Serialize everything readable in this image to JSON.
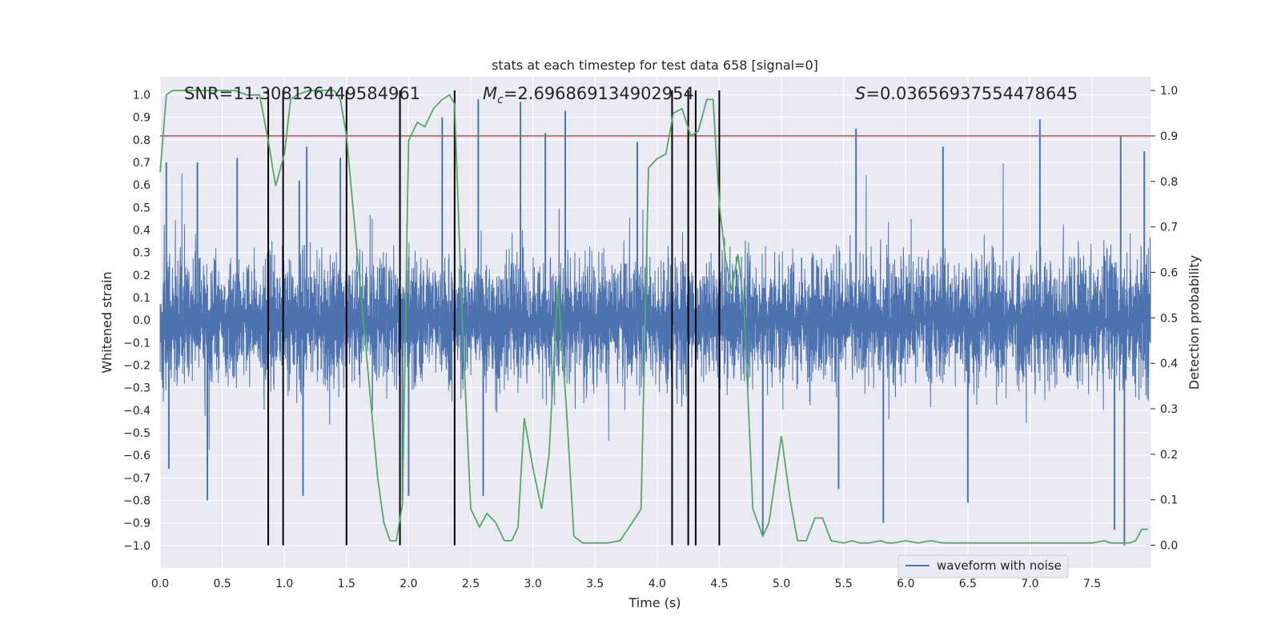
{
  "chart_data": {
    "type": "line",
    "title": "stats at each timestep for test data 658 [signal=0]",
    "xlabel": "Time (s)",
    "ylabel": "Whitened strain",
    "ylabel_right": "Detection probability",
    "xlim": [
      0.0,
      7.97
    ],
    "ylim": [
      -1.1,
      1.08
    ],
    "ylim_right": [
      -0.05,
      1.03
    ],
    "x_ticks": [
      "0.0",
      "0.5",
      "1.0",
      "1.5",
      "2.0",
      "2.5",
      "3.0",
      "3.5",
      "4.0",
      "4.5",
      "5.0",
      "5.5",
      "6.0",
      "6.5",
      "7.0",
      "7.5"
    ],
    "y_ticks": [
      "1.0",
      "0.9",
      "0.8",
      "0.7",
      "0.6",
      "0.5",
      "0.4",
      "0.3",
      "0.2",
      "0.1",
      "0.0",
      "−0.1",
      "−0.2",
      "−0.3",
      "−0.4",
      "−0.5",
      "−0.6",
      "−0.7",
      "−0.8",
      "−0.9",
      "−1.0"
    ],
    "y_right_ticks": [
      "1.0",
      "0.9",
      "0.8",
      "0.7",
      "0.6",
      "0.5",
      "0.4",
      "0.3",
      "0.2",
      "0.1",
      "0.0"
    ],
    "annotations": {
      "snr": "SNR=11.308126449584961",
      "mc_symbol": "M",
      "mc_sub": "c",
      "mc_value": "=2.696869134902954",
      "s_symbol": "S",
      "s_value": "=0.03656937554478645"
    },
    "legend": {
      "label": "waveform with noise",
      "placement": "lower-right"
    },
    "waveform": {
      "name": "waveform with noise",
      "color": "#4c72b0",
      "typical_envelope": 0.4,
      "peaks": [
        {
          "x": 0.05,
          "y": 0.7
        },
        {
          "x": 0.07,
          "y": -0.66
        },
        {
          "x": 0.3,
          "y": 0.7
        },
        {
          "x": 0.38,
          "y": -0.8
        },
        {
          "x": 0.62,
          "y": 0.72
        },
        {
          "x": 1.12,
          "y": 0.62
        },
        {
          "x": 1.15,
          "y": -0.78
        },
        {
          "x": 1.18,
          "y": 0.77
        },
        {
          "x": 1.45,
          "y": 0.72
        },
        {
          "x": 1.5,
          "y": -0.63
        },
        {
          "x": 1.95,
          "y": -0.8
        },
        {
          "x": 2.0,
          "y": -0.78
        },
        {
          "x": 2.27,
          "y": 0.9
        },
        {
          "x": 2.56,
          "y": 0.98
        },
        {
          "x": 2.6,
          "y": -0.78
        },
        {
          "x": 2.9,
          "y": 0.97
        },
        {
          "x": 3.1,
          "y": 0.83
        },
        {
          "x": 3.26,
          "y": 0.93
        },
        {
          "x": 3.84,
          "y": 0.79
        },
        {
          "x": 4.25,
          "y": -0.82
        },
        {
          "x": 4.85,
          "y": -0.95
        },
        {
          "x": 5.46,
          "y": -0.75
        },
        {
          "x": 5.6,
          "y": 0.85
        },
        {
          "x": 5.82,
          "y": -0.9
        },
        {
          "x": 6.3,
          "y": 0.77
        },
        {
          "x": 6.5,
          "y": -0.81
        },
        {
          "x": 7.08,
          "y": 0.89
        },
        {
          "x": 7.68,
          "y": -0.93
        },
        {
          "x": 7.73,
          "y": 0.82
        },
        {
          "x": 7.76,
          "y": -1.0
        },
        {
          "x": 7.92,
          "y": 0.75
        }
      ]
    },
    "detection_probability": {
      "color": "#55a868",
      "x": [
        0.0,
        0.05,
        0.1,
        0.2,
        0.3,
        0.4,
        0.5,
        0.6,
        0.7,
        0.8,
        0.87,
        0.93,
        1.0,
        1.05,
        1.1,
        1.2,
        1.3,
        1.4,
        1.45,
        1.5,
        1.6,
        1.7,
        1.75,
        1.8,
        1.85,
        1.9,
        1.95,
        2.0,
        2.07,
        2.13,
        2.2,
        2.27,
        2.33,
        2.37,
        2.43,
        2.5,
        2.57,
        2.63,
        2.7,
        2.77,
        2.83,
        2.88,
        2.93,
        3.0,
        3.07,
        3.13,
        3.2,
        3.27,
        3.33,
        3.4,
        3.5,
        3.6,
        3.7,
        3.8,
        3.87,
        3.93,
        4.0,
        4.07,
        4.13,
        4.2,
        4.27,
        4.33,
        4.4,
        4.45,
        4.5,
        4.55,
        4.6,
        4.65,
        4.7,
        4.77,
        4.85,
        4.9,
        5.0,
        5.07,
        5.13,
        5.2,
        5.27,
        5.33,
        5.4,
        5.5,
        5.57,
        5.63,
        5.7,
        5.8,
        5.85,
        5.9,
        6.0,
        6.1,
        6.2,
        6.3,
        6.4,
        6.5,
        6.6,
        6.7,
        6.8,
        6.9,
        7.0,
        7.1,
        7.2,
        7.3,
        7.4,
        7.5,
        7.6,
        7.65,
        7.7,
        7.75,
        7.8,
        7.85,
        7.9,
        7.95
      ],
      "y": [
        0.82,
        0.99,
        1.0,
        1.0,
        1.0,
        1.0,
        1.0,
        1.0,
        0.99,
        0.99,
        0.89,
        0.79,
        0.86,
        0.98,
        0.99,
        1.0,
        1.0,
        1.0,
        0.98,
        0.9,
        0.6,
        0.3,
        0.15,
        0.05,
        0.01,
        0.01,
        0.09,
        0.89,
        0.93,
        0.92,
        0.96,
        0.98,
        0.99,
        0.97,
        0.5,
        0.08,
        0.04,
        0.07,
        0.05,
        0.01,
        0.01,
        0.04,
        0.28,
        0.17,
        0.08,
        0.2,
        0.57,
        0.3,
        0.02,
        0.005,
        0.005,
        0.005,
        0.01,
        0.05,
        0.08,
        0.83,
        0.85,
        0.86,
        0.95,
        0.96,
        0.9,
        0.91,
        0.98,
        0.98,
        0.75,
        0.63,
        0.56,
        0.64,
        0.52,
        0.08,
        0.02,
        0.05,
        0.24,
        0.1,
        0.01,
        0.01,
        0.06,
        0.06,
        0.01,
        0.005,
        0.01,
        0.005,
        0.005,
        0.01,
        0.005,
        0.005,
        0.01,
        0.005,
        0.01,
        0.005,
        0.005,
        0.005,
        0.005,
        0.005,
        0.005,
        0.005,
        0.005,
        0.005,
        0.005,
        0.005,
        0.005,
        0.005,
        0.01,
        0.005,
        0.005,
        0.005,
        0.005,
        0.01,
        0.035,
        0.035
      ]
    },
    "threshold_line": {
      "value": 0.9,
      "color": "#c44e52"
    },
    "vertical_markers": {
      "color": "#000000",
      "x": [
        0.87,
        0.99,
        1.5,
        1.93,
        2.37,
        4.12,
        4.25,
        4.31,
        4.5
      ]
    },
    "grid": true
  }
}
